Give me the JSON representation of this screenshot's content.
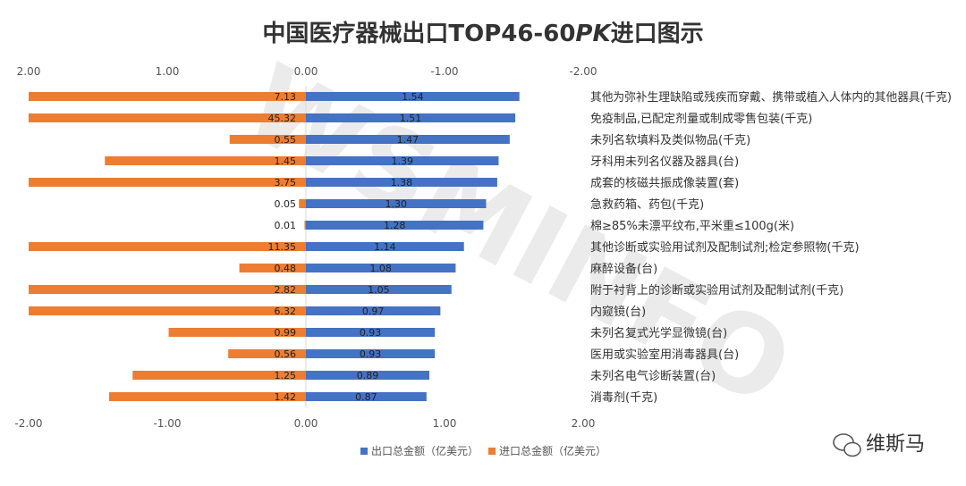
{
  "chart_data": {
    "type": "bar",
    "title": "中国医疗器械出口TOP46-60PK进口图示",
    "title_main": "中国医疗器械出口TOP46-60",
    "title_italic": "PK",
    "title_tail": "进口图示",
    "top_axis_ticks": [
      "2.00",
      "1.00",
      "0.00",
      "-1.00",
      "-2.00"
    ],
    "bottom_axis_ticks": [
      "-2.00",
      "-1.00",
      "0.00",
      "1.00",
      "2.00"
    ],
    "xlim": [
      -2,
      2
    ],
    "categories": [
      "其他为弥补生理缺陷或残疾而穿戴、携带或植入人体内的其他器具(千克)",
      "免疫制品,已配定剂量或制成零售包装(千克)",
      "未列名软填料及类似物品(千克)",
      "牙科用未列名仪器及器具(台)",
      "成套的核磁共振成像装置(套)",
      "急救药箱、药包(千克)",
      "棉≥85%未漂平纹布,平米重≤100g(米)",
      "其他诊断或实验用试剂及配制试剂;检定参照物(千克)",
      "麻醉设备(台)",
      "附于衬背上的诊断或实验用试剂及配制试剂(千克)",
      "内窥镜(台)",
      "未列名复式光学显微镜(台)",
      "医用或实验室用消毒器具(台)",
      "未列名电气诊断装置(台)",
      "消毒剂(千克)"
    ],
    "series": [
      {
        "name": "出口总金额(亿美元)",
        "color": "#4472c4",
        "values": [
          1.54,
          1.51,
          1.47,
          1.39,
          1.38,
          1.3,
          1.28,
          1.14,
          1.08,
          1.05,
          0.97,
          0.93,
          0.93,
          0.89,
          0.87
        ],
        "labels": [
          "1.54",
          "1.51",
          "1.47",
          "1.39",
          "1.38",
          "1.30",
          "1.28",
          "1.14",
          "1.08",
          "1.05",
          "0.97",
          "0.93",
          "0.93",
          "0.89",
          "0.87"
        ]
      },
      {
        "name": "进口总金额(亿美元)",
        "color": "#ed7d31",
        "values": [
          7.13,
          45.32,
          0.55,
          1.45,
          3.75,
          0.05,
          0.01,
          11.35,
          0.48,
          2.82,
          6.32,
          0.99,
          0.56,
          1.25,
          1.42
        ],
        "labels": [
          "7.13",
          "45.32",
          "0.55",
          "1.45",
          "3.75",
          "0.05",
          "0.01",
          "11.35",
          "0.48",
          "2.82",
          "6.32",
          "0.99",
          "0.56",
          "1.25",
          "1.42"
        ]
      }
    ],
    "legend": [
      {
        "label": "出口总金额（亿美元）",
        "color": "#4472c4"
      },
      {
        "label": "进口总金额（亿美元）",
        "color": "#ed7d31"
      }
    ],
    "watermark": "WSMINFO",
    "brand": "维斯马"
  }
}
